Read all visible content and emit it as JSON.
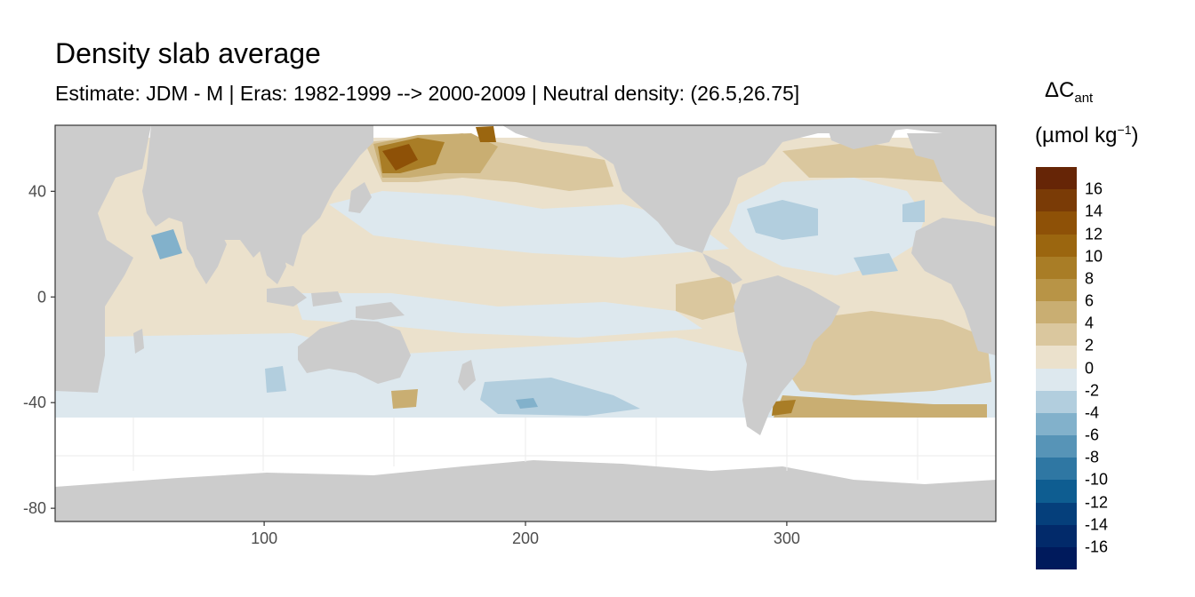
{
  "title": "Density slab average",
  "subtitle": "Estimate: JDM - M | Eras: 1982-1999 --> 2000-2009 | Neutral density: (26.5,26.75]",
  "legend": {
    "symbol": "ΔC",
    "subscript": "ant",
    "unit_prefix": "(µmol kg",
    "unit_exp": "−1",
    "unit_suffix": ")",
    "labels": [
      "16",
      "14",
      "12",
      "10",
      "8",
      "6",
      "4",
      "2",
      "0",
      "-2",
      "-4",
      "-6",
      "-8",
      "-10",
      "-12",
      "-14",
      "-16"
    ],
    "colors": [
      "#662506",
      "#7a3b06",
      "#8e5107",
      "#9b660f",
      "#a97d26",
      "#b89446",
      "#c9ae72",
      "#dac79e",
      "#ebe1cc",
      "#dde8ee",
      "#b2cede",
      "#82b1cb",
      "#5794b7",
      "#2f77a3",
      "#0e5d91",
      "#053f7b",
      "#022a6a",
      "#001a5c"
    ]
  },
  "chart_data": {
    "type": "heatmap",
    "title": "Density slab average",
    "subtitle": "Estimate: JDM - M | Eras: 1982-1999 --> 2000-2009 | Neutral density: (26.5,26.75]",
    "xlim": [
      20,
      380
    ],
    "ylim": [
      -85,
      65
    ],
    "x_ticks": [
      100,
      200,
      300
    ],
    "y_ticks": [
      40,
      0,
      -40,
      -80
    ],
    "grid": true,
    "legend_position": "right",
    "land_color": "#cccccc",
    "nodata_color": "#ffffff",
    "value_range": [
      -18,
      18
    ],
    "regions": [
      {
        "name": "base-band",
        "x": [
          22,
          380
        ],
        "y": [
          -47,
          60
        ],
        "value": 0.5
      },
      {
        "name": "atlantic-north",
        "x": [
          290,
          360
        ],
        "y": [
          5,
          45
        ],
        "value": -1.5
      },
      {
        "name": "kuroshio",
        "x": [
          140,
          185
        ],
        "y": [
          45,
          62
        ],
        "value": 12
      },
      {
        "name": "subpolar-pac",
        "x": [
          180,
          250
        ],
        "y": [
          40,
          60
        ],
        "value": 6
      },
      {
        "name": "south-atlantic",
        "x": [
          330,
          380
        ],
        "y": [
          -42,
          -15
        ],
        "value": 4
      },
      {
        "name": "south-pac-blue",
        "x": [
          200,
          250
        ],
        "y": [
          -47,
          -33
        ],
        "value": -3
      }
    ]
  }
}
